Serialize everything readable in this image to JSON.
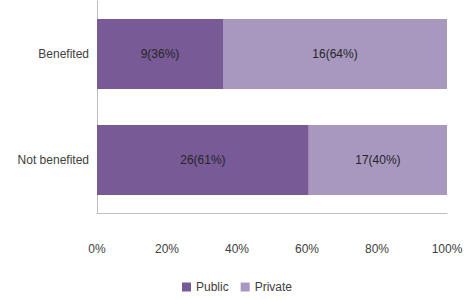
{
  "chart_data": {
    "type": "bar",
    "orientation": "horizontal",
    "stacked": true,
    "categories": [
      "Benefited",
      "Not benefited"
    ],
    "series": [
      {
        "name": "Public",
        "color": "#775a96",
        "values": [
          36,
          60.5
        ],
        "value_labels": [
          "9(36%)",
          "26(61%)"
        ]
      },
      {
        "name": "Private",
        "color": "#a898c0",
        "values": [
          64,
          39.5
        ],
        "value_labels": [
          "16(64%)",
          "17(40%)"
        ]
      }
    ],
    "xlim": [
      0,
      100
    ],
    "xticks": [
      {
        "value": 0,
        "label": "0%"
      },
      {
        "value": 20,
        "label": "20%"
      },
      {
        "value": 40,
        "label": "40%"
      },
      {
        "value": 60,
        "label": "60%"
      },
      {
        "value": 80,
        "label": "80%"
      },
      {
        "value": 100,
        "label": "100%"
      }
    ],
    "data_labels": true,
    "grid": false,
    "legend": "bottom"
  }
}
